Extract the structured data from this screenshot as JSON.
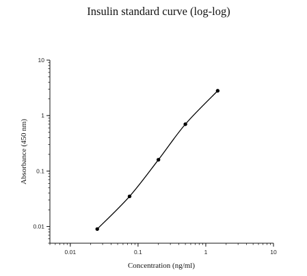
{
  "chart_data": {
    "type": "line",
    "title": "Insulin standard curve (log-log)",
    "xlabel": "Concentration (ng/ml)",
    "ylabel": "Absorbance (450 nm)",
    "x_scale": "log",
    "y_scale": "log",
    "xlim": [
      0.005,
      10
    ],
    "ylim": [
      0.005,
      10
    ],
    "x_ticks": [
      {
        "value": 0.01,
        "label": "0.01"
      },
      {
        "value": 0.1,
        "label": "0.1"
      },
      {
        "value": 1,
        "label": "1"
      },
      {
        "value": 10,
        "label": "10"
      }
    ],
    "y_ticks": [
      {
        "value": 0.01,
        "label": "0.01"
      },
      {
        "value": 0.1,
        "label": "0.1"
      },
      {
        "value": 1,
        "label": "1"
      },
      {
        "value": 10,
        "label": "10"
      }
    ],
    "grid": false,
    "series": [
      {
        "x": [
          0.025,
          0.075,
          0.2,
          0.5,
          1.5
        ],
        "y": [
          0.009,
          0.035,
          0.16,
          0.7,
          2.8
        ],
        "color": "#000000",
        "markers": true
      }
    ]
  }
}
